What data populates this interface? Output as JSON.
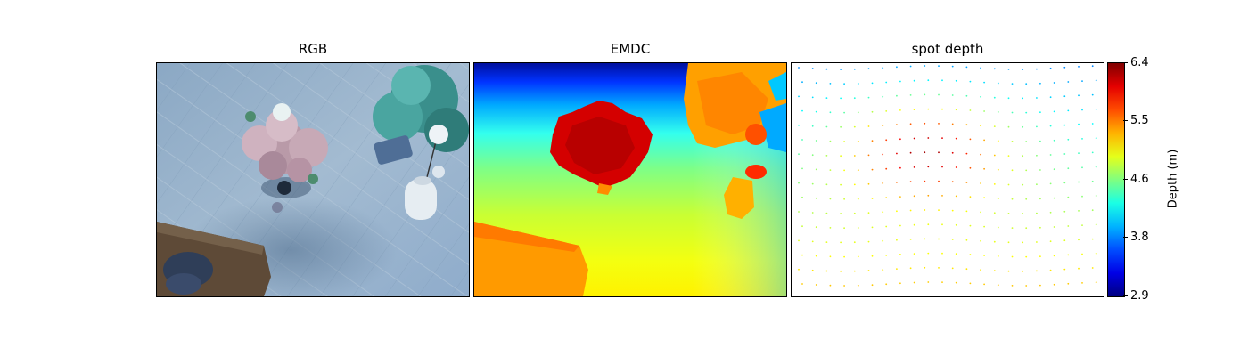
{
  "panels": {
    "rgb_title": "RGB",
    "emdc_title": "EMDC",
    "spot_title": "spot depth"
  },
  "colorbar": {
    "label": "Depth (m)",
    "ticks": [
      "6.4",
      "5.5",
      "4.6",
      "3.8",
      "2.9"
    ],
    "colormap": "jet_r",
    "range": [
      2.9,
      6.4
    ]
  },
  "colors": {
    "floor": "#a9c0d6",
    "sofa": "#5a4634",
    "plant": "#3f9a96",
    "flowers": "#c9aeb8"
  }
}
